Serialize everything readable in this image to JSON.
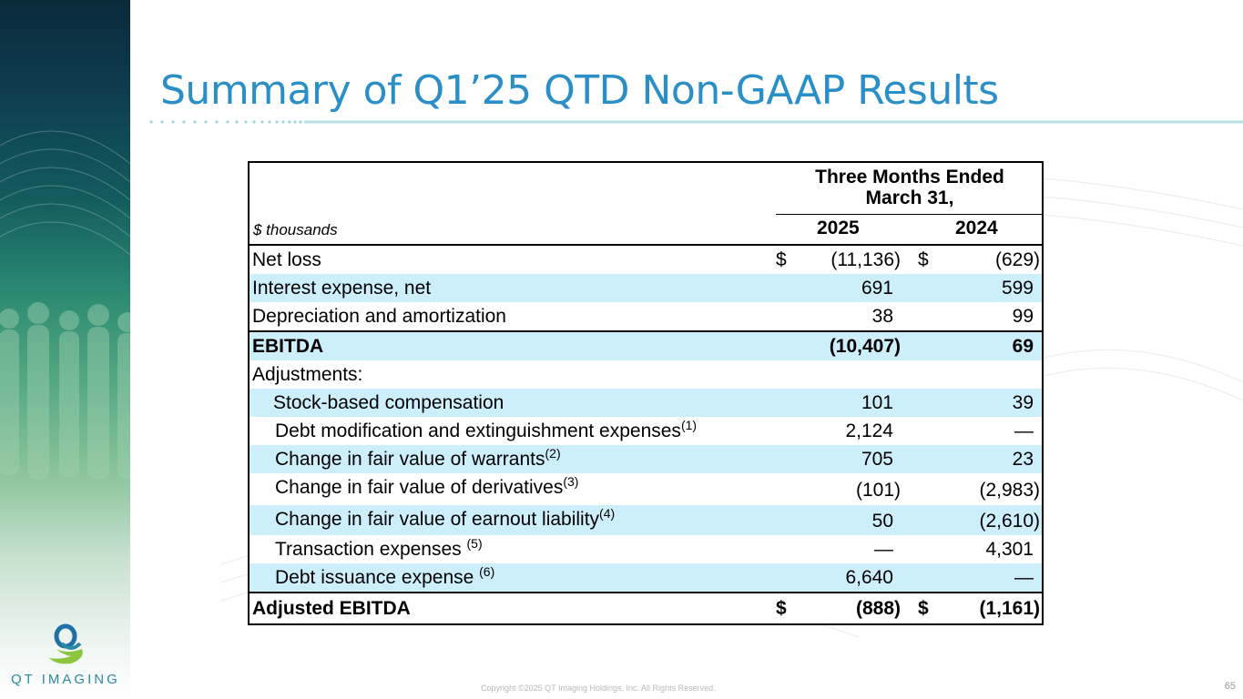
{
  "slide": {
    "title": "Summary of Q1’25 QTD Non-GAAP Results",
    "page_number": "65",
    "copyright": "Copyright ©2025 QT Imaging Holdings, Inc. All Rights Reserved.",
    "logo": {
      "prefix": "QT",
      "suffix": "IMAGING",
      "icon": "qt-imaging-logo-icon"
    },
    "colors": {
      "title": "#2a8fc7",
      "row_highlight": "#cdeefb",
      "accent": "#2b8aa0"
    }
  },
  "table": {
    "units": "$ thousands",
    "period_line1": "Three Months Ended",
    "period_line2": "March 31,",
    "year1": "2025",
    "year2": "2024",
    "rows": [
      {
        "label": "Net loss",
        "cur1": "$",
        "v1": "(11,136)",
        "cur2": "$",
        "v2": "(629)"
      },
      {
        "label": "Interest expense, net",
        "v1": "691",
        "v2": "599"
      },
      {
        "label": "Depreciation and amortization",
        "v1": "38",
        "v2": "99"
      },
      {
        "label": "EBITDA",
        "v1": "(10,407)",
        "v2": "69"
      },
      {
        "label": "Adjustments:"
      },
      {
        "label": "Stock-based compensation",
        "v1": "101",
        "v2": "39"
      },
      {
        "label": "Debt modification and extinguishment expenses",
        "note": "(1)",
        "v1": "2,124",
        "v2": "—"
      },
      {
        "label": "Change in fair value of warrants",
        "note": "(2)",
        "v1": "705",
        "v2": "23"
      },
      {
        "label": "Change in fair value of derivatives",
        "note": "(3)",
        "v1": "(101)",
        "v2": "(2,983)"
      },
      {
        "label": "Change in fair value of earnout liability",
        "note": "(4)",
        "v1": "50",
        "v2": "(2,610)"
      },
      {
        "label": "Transaction expenses ",
        "note": "(5)",
        "v1": "—",
        "v2": "4,301"
      },
      {
        "label": "Debt issuance expense ",
        "note": "(6)",
        "v1": "6,640",
        "v2": "—"
      },
      {
        "label": "Adjusted EBITDA",
        "cur1": "$",
        "v1": "(888)",
        "cur2": "$",
        "v2": "(1,161)"
      }
    ]
  }
}
